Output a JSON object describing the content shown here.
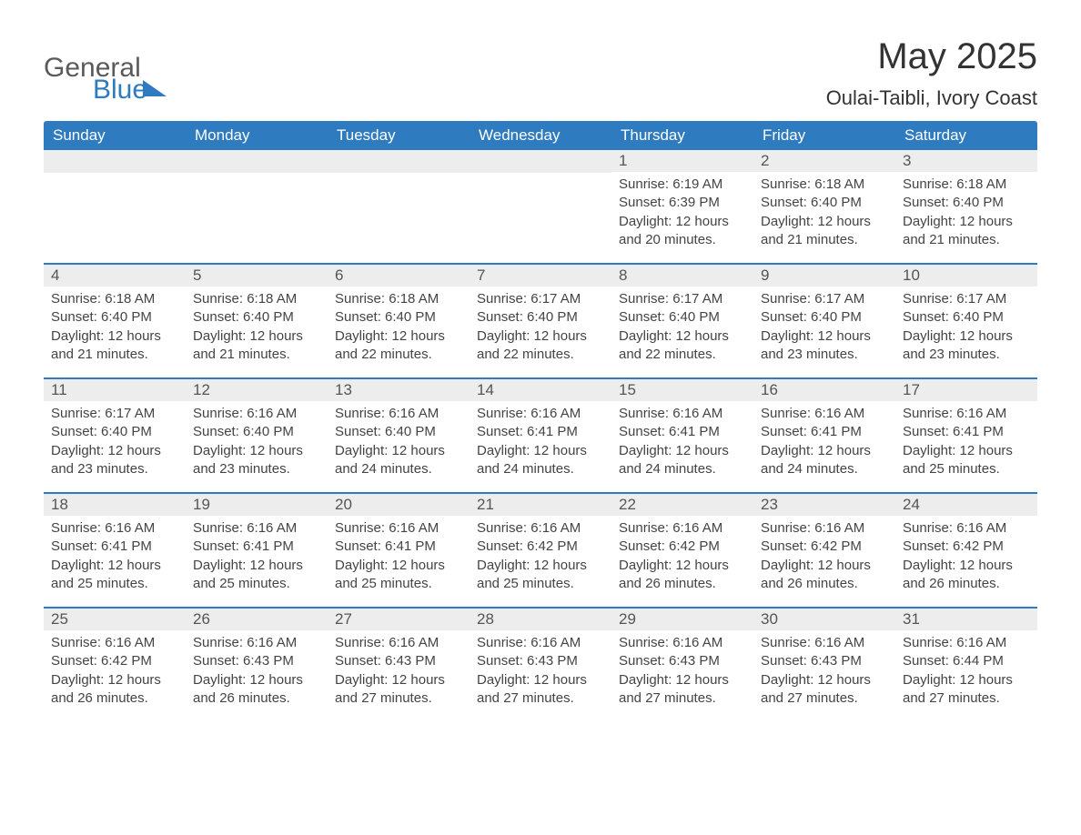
{
  "logo": {
    "text_general": "General",
    "text_blue": "Blue",
    "accent_color": "#2f7bbf",
    "text_color": "#5a5a5a"
  },
  "title": {
    "month": "May 2025",
    "location": "Oulai-Taibli, Ivory Coast"
  },
  "styling": {
    "header_bg": "#2f7bbf",
    "header_text_color": "#ffffff",
    "daynum_bg": "#ededed",
    "daynum_text_color": "#555555",
    "body_text_color": "#444444",
    "week_border_color": "#2f7bbf",
    "page_bg": "#ffffff",
    "title_fontsize": 40,
    "location_fontsize": 22,
    "dayhead_fontsize": 17,
    "cell_fontsize": 15
  },
  "day_headers": [
    "Sunday",
    "Monday",
    "Tuesday",
    "Wednesday",
    "Thursday",
    "Friday",
    "Saturday"
  ],
  "weeks": [
    [
      {
        "day": "",
        "lines": []
      },
      {
        "day": "",
        "lines": []
      },
      {
        "day": "",
        "lines": []
      },
      {
        "day": "",
        "lines": []
      },
      {
        "day": "1",
        "lines": [
          "Sunrise: 6:19 AM",
          "Sunset: 6:39 PM",
          "Daylight: 12 hours and 20 minutes."
        ]
      },
      {
        "day": "2",
        "lines": [
          "Sunrise: 6:18 AM",
          "Sunset: 6:40 PM",
          "Daylight: 12 hours and 21 minutes."
        ]
      },
      {
        "day": "3",
        "lines": [
          "Sunrise: 6:18 AM",
          "Sunset: 6:40 PM",
          "Daylight: 12 hours and 21 minutes."
        ]
      }
    ],
    [
      {
        "day": "4",
        "lines": [
          "Sunrise: 6:18 AM",
          "Sunset: 6:40 PM",
          "Daylight: 12 hours and 21 minutes."
        ]
      },
      {
        "day": "5",
        "lines": [
          "Sunrise: 6:18 AM",
          "Sunset: 6:40 PM",
          "Daylight: 12 hours and 21 minutes."
        ]
      },
      {
        "day": "6",
        "lines": [
          "Sunrise: 6:18 AM",
          "Sunset: 6:40 PM",
          "Daylight: 12 hours and 22 minutes."
        ]
      },
      {
        "day": "7",
        "lines": [
          "Sunrise: 6:17 AM",
          "Sunset: 6:40 PM",
          "Daylight: 12 hours and 22 minutes."
        ]
      },
      {
        "day": "8",
        "lines": [
          "Sunrise: 6:17 AM",
          "Sunset: 6:40 PM",
          "Daylight: 12 hours and 22 minutes."
        ]
      },
      {
        "day": "9",
        "lines": [
          "Sunrise: 6:17 AM",
          "Sunset: 6:40 PM",
          "Daylight: 12 hours and 23 minutes."
        ]
      },
      {
        "day": "10",
        "lines": [
          "Sunrise: 6:17 AM",
          "Sunset: 6:40 PM",
          "Daylight: 12 hours and 23 minutes."
        ]
      }
    ],
    [
      {
        "day": "11",
        "lines": [
          "Sunrise: 6:17 AM",
          "Sunset: 6:40 PM",
          "Daylight: 12 hours and 23 minutes."
        ]
      },
      {
        "day": "12",
        "lines": [
          "Sunrise: 6:16 AM",
          "Sunset: 6:40 PM",
          "Daylight: 12 hours and 23 minutes."
        ]
      },
      {
        "day": "13",
        "lines": [
          "Sunrise: 6:16 AM",
          "Sunset: 6:40 PM",
          "Daylight: 12 hours and 24 minutes."
        ]
      },
      {
        "day": "14",
        "lines": [
          "Sunrise: 6:16 AM",
          "Sunset: 6:41 PM",
          "Daylight: 12 hours and 24 minutes."
        ]
      },
      {
        "day": "15",
        "lines": [
          "Sunrise: 6:16 AM",
          "Sunset: 6:41 PM",
          "Daylight: 12 hours and 24 minutes."
        ]
      },
      {
        "day": "16",
        "lines": [
          "Sunrise: 6:16 AM",
          "Sunset: 6:41 PM",
          "Daylight: 12 hours and 24 minutes."
        ]
      },
      {
        "day": "17",
        "lines": [
          "Sunrise: 6:16 AM",
          "Sunset: 6:41 PM",
          "Daylight: 12 hours and 25 minutes."
        ]
      }
    ],
    [
      {
        "day": "18",
        "lines": [
          "Sunrise: 6:16 AM",
          "Sunset: 6:41 PM",
          "Daylight: 12 hours and 25 minutes."
        ]
      },
      {
        "day": "19",
        "lines": [
          "Sunrise: 6:16 AM",
          "Sunset: 6:41 PM",
          "Daylight: 12 hours and 25 minutes."
        ]
      },
      {
        "day": "20",
        "lines": [
          "Sunrise: 6:16 AM",
          "Sunset: 6:41 PM",
          "Daylight: 12 hours and 25 minutes."
        ]
      },
      {
        "day": "21",
        "lines": [
          "Sunrise: 6:16 AM",
          "Sunset: 6:42 PM",
          "Daylight: 12 hours and 25 minutes."
        ]
      },
      {
        "day": "22",
        "lines": [
          "Sunrise: 6:16 AM",
          "Sunset: 6:42 PM",
          "Daylight: 12 hours and 26 minutes."
        ]
      },
      {
        "day": "23",
        "lines": [
          "Sunrise: 6:16 AM",
          "Sunset: 6:42 PM",
          "Daylight: 12 hours and 26 minutes."
        ]
      },
      {
        "day": "24",
        "lines": [
          "Sunrise: 6:16 AM",
          "Sunset: 6:42 PM",
          "Daylight: 12 hours and 26 minutes."
        ]
      }
    ],
    [
      {
        "day": "25",
        "lines": [
          "Sunrise: 6:16 AM",
          "Sunset: 6:42 PM",
          "Daylight: 12 hours and 26 minutes."
        ]
      },
      {
        "day": "26",
        "lines": [
          "Sunrise: 6:16 AM",
          "Sunset: 6:43 PM",
          "Daylight: 12 hours and 26 minutes."
        ]
      },
      {
        "day": "27",
        "lines": [
          "Sunrise: 6:16 AM",
          "Sunset: 6:43 PM",
          "Daylight: 12 hours and 27 minutes."
        ]
      },
      {
        "day": "28",
        "lines": [
          "Sunrise: 6:16 AM",
          "Sunset: 6:43 PM",
          "Daylight: 12 hours and 27 minutes."
        ]
      },
      {
        "day": "29",
        "lines": [
          "Sunrise: 6:16 AM",
          "Sunset: 6:43 PM",
          "Daylight: 12 hours and 27 minutes."
        ]
      },
      {
        "day": "30",
        "lines": [
          "Sunrise: 6:16 AM",
          "Sunset: 6:43 PM",
          "Daylight: 12 hours and 27 minutes."
        ]
      },
      {
        "day": "31",
        "lines": [
          "Sunrise: 6:16 AM",
          "Sunset: 6:44 PM",
          "Daylight: 12 hours and 27 minutes."
        ]
      }
    ]
  ]
}
